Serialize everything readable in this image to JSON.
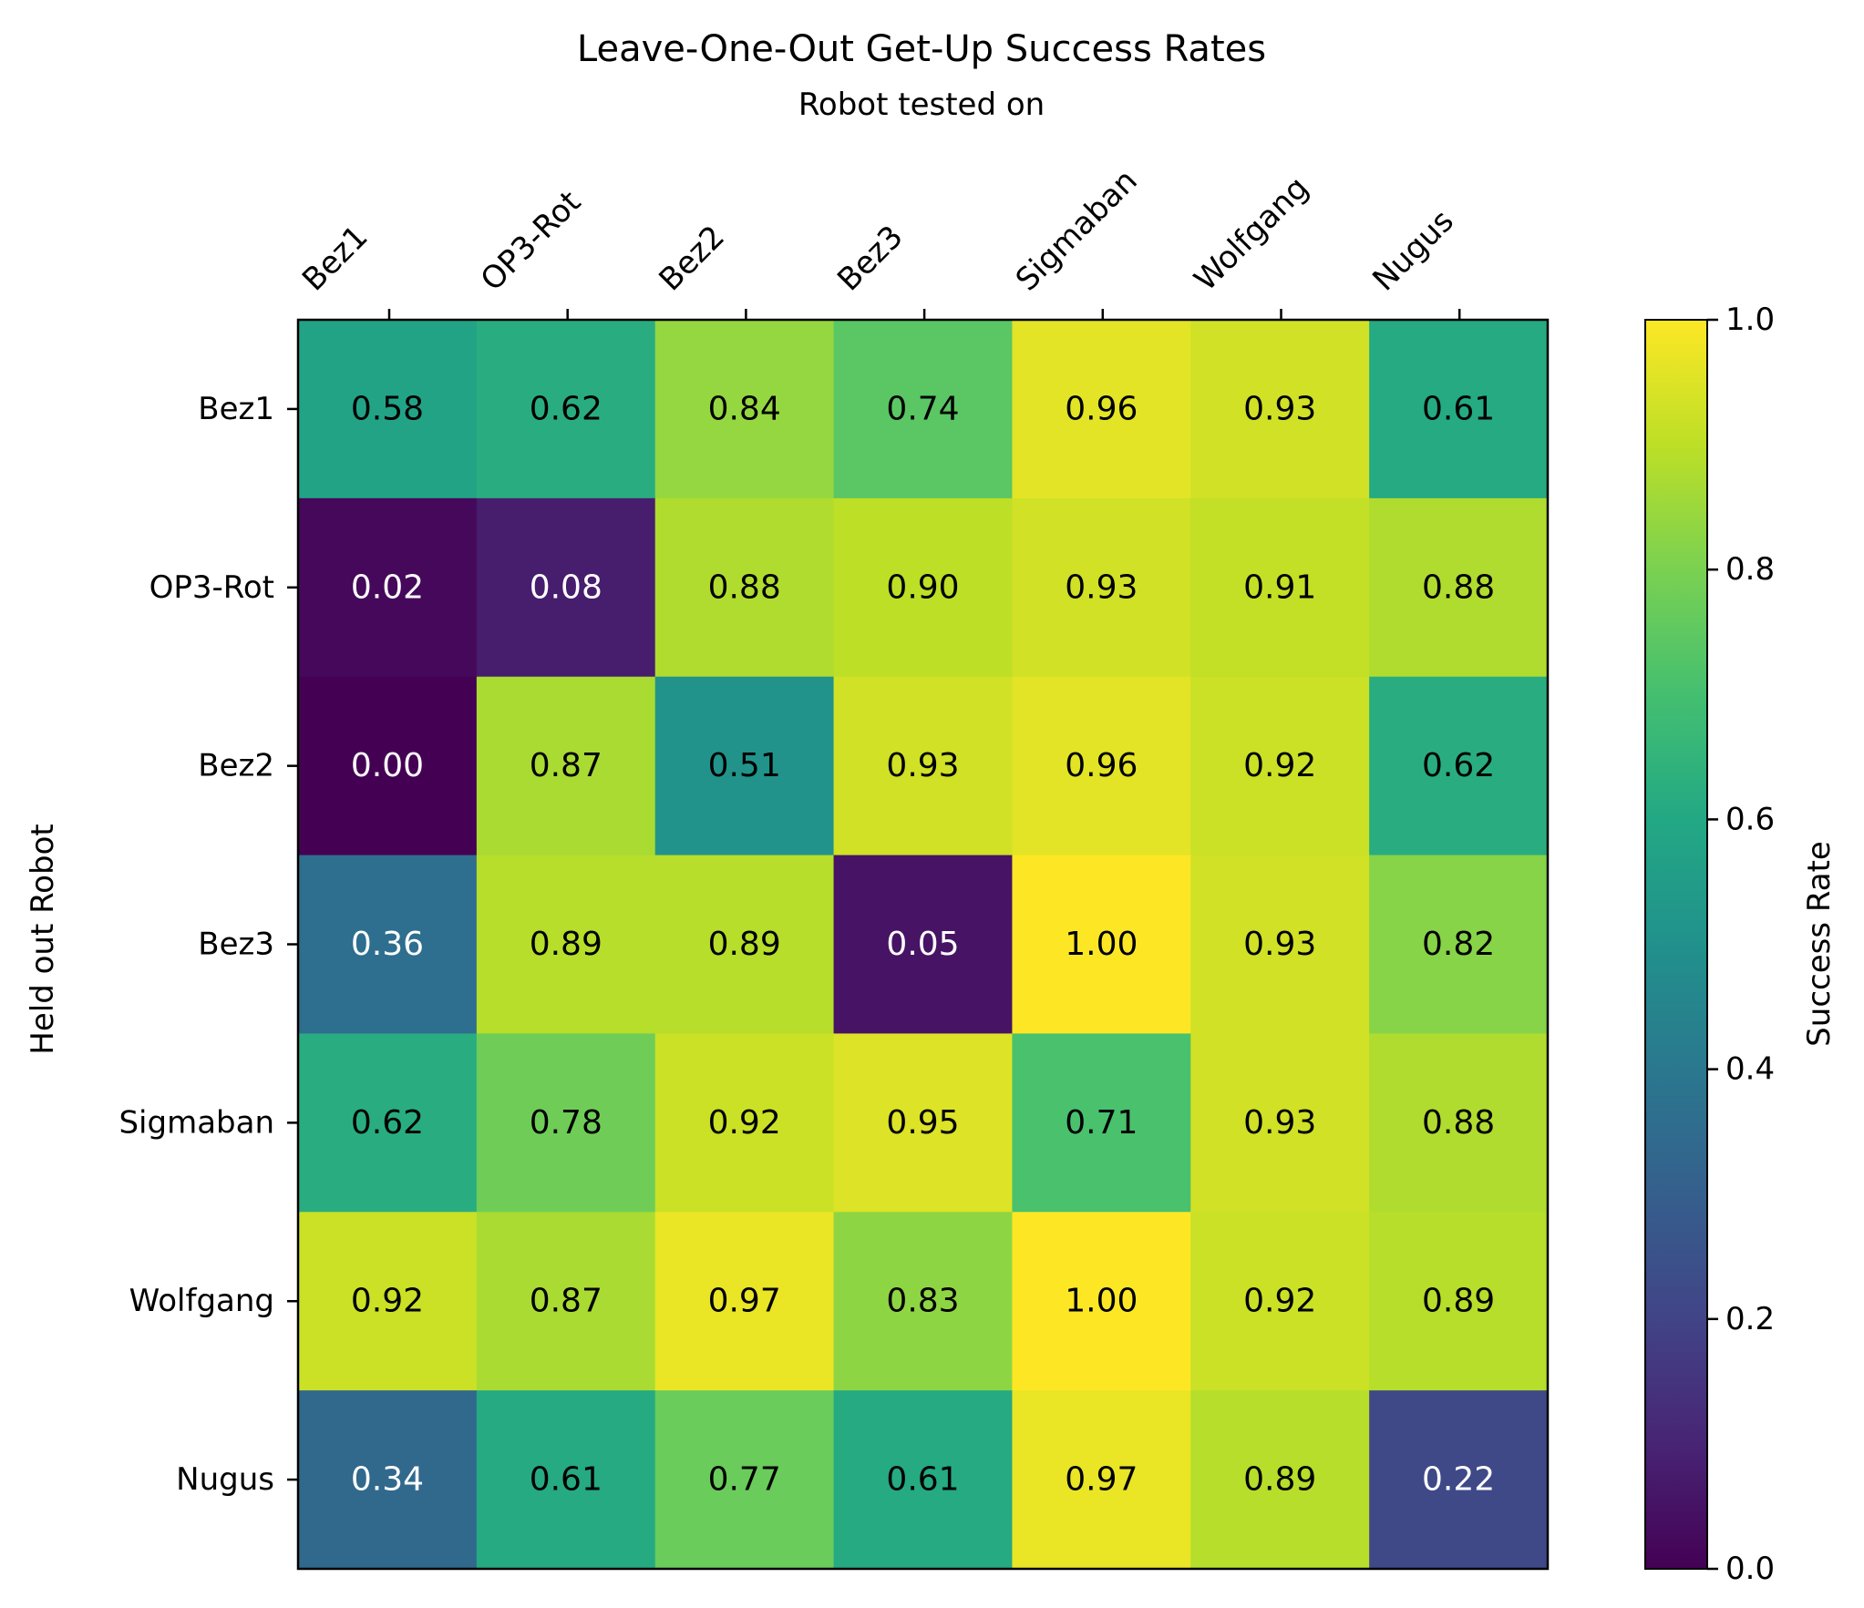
{
  "chart_data": {
    "type": "heatmap",
    "title": "Leave-One-Out Get-Up Success Rates",
    "xlabel": "Robot tested on",
    "ylabel": "Held out Robot",
    "x_categories": [
      "Bez1",
      "OP3-Rot",
      "Bez2",
      "Bez3",
      "Sigmaban",
      "Wolfgang",
      "Nugus"
    ],
    "y_categories": [
      "Bez1",
      "OP3-Rot",
      "Bez2",
      "Bez3",
      "Sigmaban",
      "Wolfgang",
      "Nugus"
    ],
    "values": [
      [
        0.58,
        0.62,
        0.84,
        0.74,
        0.96,
        0.93,
        0.61
      ],
      [
        0.02,
        0.08,
        0.88,
        0.9,
        0.93,
        0.91,
        0.88
      ],
      [
        0.0,
        0.87,
        0.51,
        0.93,
        0.96,
        0.92,
        0.62
      ],
      [
        0.36,
        0.89,
        0.89,
        0.05,
        1.0,
        0.93,
        0.82
      ],
      [
        0.62,
        0.78,
        0.92,
        0.95,
        0.71,
        0.93,
        0.88
      ],
      [
        0.92,
        0.87,
        0.97,
        0.83,
        1.0,
        0.92,
        0.89
      ],
      [
        0.34,
        0.61,
        0.77,
        0.61,
        0.97,
        0.89,
        0.22
      ]
    ],
    "value_format": "2 decimals",
    "colormap": "viridis",
    "vmin": 0.0,
    "vmax": 1.0,
    "colorbar": {
      "label": "Success Rate",
      "ticks": [
        "0.0",
        "0.2",
        "0.4",
        "0.6",
        "0.8",
        "1.0"
      ],
      "position": "right"
    },
    "x_axis_position": "top",
    "grid": false
  }
}
